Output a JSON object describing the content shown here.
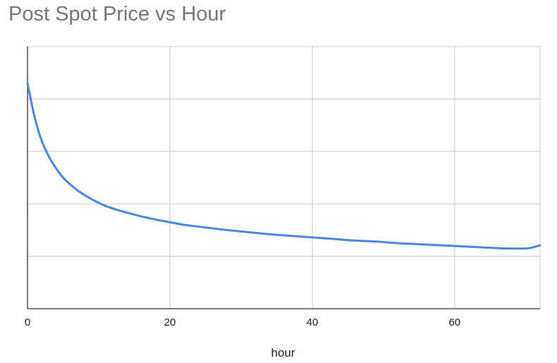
{
  "chart_data": {
    "type": "line",
    "title": "Post Spot Price vs Hour",
    "xlabel": "hour",
    "ylabel": "",
    "xlim": [
      0,
      72
    ],
    "ylim": [
      0,
      5
    ],
    "x_ticks": [
      0,
      20,
      40,
      60
    ],
    "y_gridlines": [
      0,
      1,
      2,
      3,
      4,
      5
    ],
    "y_tick_labels_shown": false,
    "grid": true,
    "legend": "none",
    "series": [
      {
        "color": "#4a86e8",
        "x": [
          0,
          1,
          2,
          3,
          4,
          5,
          6,
          7,
          8,
          9,
          10,
          11,
          12,
          14,
          16,
          18,
          20,
          22,
          25,
          28,
          31,
          34,
          37,
          40,
          43,
          46,
          49,
          52,
          55,
          58,
          61,
          64,
          67,
          70,
          71,
          72
        ],
        "y": [
          4.3,
          3.65,
          3.2,
          2.9,
          2.68,
          2.5,
          2.37,
          2.26,
          2.17,
          2.09,
          2.02,
          1.96,
          1.91,
          1.83,
          1.76,
          1.7,
          1.65,
          1.6,
          1.55,
          1.5,
          1.46,
          1.42,
          1.39,
          1.36,
          1.33,
          1.3,
          1.28,
          1.25,
          1.23,
          1.21,
          1.19,
          1.17,
          1.15,
          1.15,
          1.17,
          1.21
        ]
      }
    ]
  }
}
